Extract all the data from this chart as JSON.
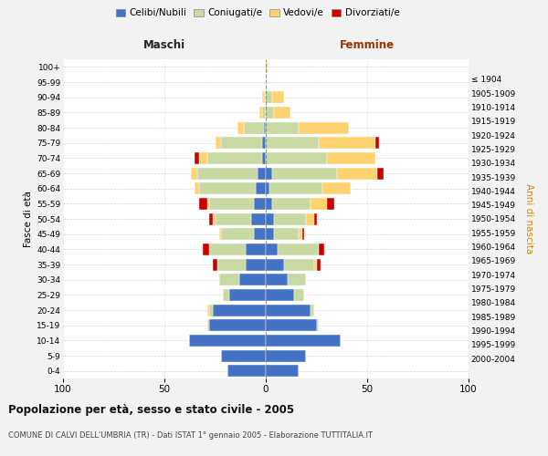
{
  "age_groups": [
    "0-4",
    "5-9",
    "10-14",
    "15-19",
    "20-24",
    "25-29",
    "30-34",
    "35-39",
    "40-44",
    "45-49",
    "50-54",
    "55-59",
    "60-64",
    "65-69",
    "70-74",
    "75-79",
    "80-84",
    "85-89",
    "90-94",
    "95-99",
    "100+"
  ],
  "birth_years": [
    "2000-2004",
    "1995-1999",
    "1990-1994",
    "1985-1989",
    "1980-1984",
    "1975-1979",
    "1970-1974",
    "1965-1969",
    "1960-1964",
    "1955-1959",
    "1950-1954",
    "1945-1949",
    "1940-1944",
    "1935-1939",
    "1930-1934",
    "1925-1929",
    "1920-1924",
    "1915-1919",
    "1910-1914",
    "1905-1909",
    "≤ 1904"
  ],
  "title": "Popolazione per età, sesso e stato civile - 2005",
  "subtitle": "COMUNE DI CALVI DELL'UMBRIA (TR) - Dati ISTAT 1° gennaio 2005 - Elaborazione TUTTITALIA.IT",
  "xlabel_left": "Maschi",
  "xlabel_right": "Femmine",
  "ylabel_left": "Fasce di età",
  "ylabel_right": "Anni di nascita",
  "colors": {
    "celibe": "#4472C4",
    "coniugato": "#c8d9a4",
    "vedovo": "#FFD270",
    "divorziato": "#CC0000"
  },
  "legend_labels": [
    "Celibi/Nubili",
    "Coniugati/e",
    "Vedovi/e",
    "Divorziati/e"
  ],
  "maschi": {
    "celibe": [
      19,
      22,
      38,
      28,
      26,
      18,
      13,
      10,
      10,
      6,
      7,
      6,
      5,
      4,
      2,
      2,
      1,
      0,
      0,
      0,
      0
    ],
    "coniugato": [
      0,
      0,
      0,
      1,
      2,
      3,
      10,
      14,
      18,
      16,
      18,
      22,
      28,
      30,
      27,
      20,
      10,
      2,
      1,
      0,
      0
    ],
    "vedovo": [
      0,
      0,
      0,
      0,
      1,
      0,
      0,
      0,
      0,
      1,
      1,
      1,
      2,
      3,
      4,
      3,
      3,
      1,
      1,
      0,
      0
    ],
    "divorziato": [
      0,
      0,
      0,
      0,
      0,
      0,
      0,
      2,
      3,
      0,
      2,
      4,
      0,
      0,
      2,
      0,
      0,
      0,
      0,
      0,
      0
    ]
  },
  "femmine": {
    "celibe": [
      16,
      20,
      37,
      25,
      22,
      14,
      11,
      9,
      6,
      4,
      4,
      3,
      2,
      3,
      0,
      0,
      0,
      0,
      0,
      0,
      0
    ],
    "coniugato": [
      0,
      0,
      0,
      1,
      2,
      5,
      9,
      15,
      20,
      12,
      16,
      19,
      26,
      32,
      30,
      26,
      16,
      4,
      3,
      0,
      0
    ],
    "vedovo": [
      0,
      0,
      0,
      0,
      0,
      0,
      0,
      1,
      0,
      2,
      4,
      8,
      14,
      20,
      24,
      28,
      25,
      8,
      6,
      0,
      1
    ],
    "divorziato": [
      0,
      0,
      0,
      0,
      0,
      0,
      0,
      2,
      3,
      1,
      1,
      4,
      0,
      3,
      0,
      2,
      0,
      0,
      0,
      0,
      0
    ]
  },
  "xlim": 100,
  "background_color": "#f2f2f2",
  "plot_background": "#ffffff"
}
